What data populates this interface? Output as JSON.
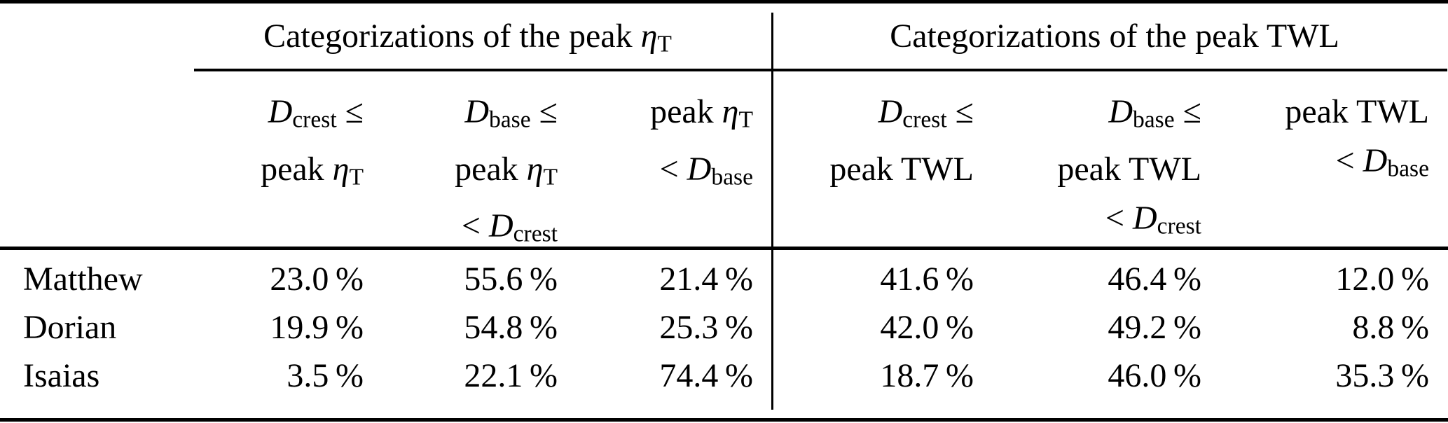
{
  "table": {
    "groups": [
      {
        "title": [
          {
            "t": "Categorizations of the peak "
          },
          {
            "v": "η"
          },
          {
            "s": "T"
          }
        ]
      },
      {
        "title": [
          {
            "t": "Categorizations of the peak TWL"
          }
        ]
      }
    ],
    "col_headers": [
      {
        "lines": [
          [
            {
              "v": "D"
            },
            {
              "s": "crest"
            },
            {
              "t": " ≤"
            }
          ],
          [
            {
              "t": "peak "
            },
            {
              "v": "η"
            },
            {
              "s": "T"
            }
          ]
        ]
      },
      {
        "lines": [
          [
            {
              "v": "D"
            },
            {
              "s": "base"
            },
            {
              "t": " ≤"
            }
          ],
          [
            {
              "t": "peak "
            },
            {
              "v": "η"
            },
            {
              "s": "T"
            }
          ],
          [
            {
              "t": "< "
            },
            {
              "v": "D"
            },
            {
              "s": "crest"
            }
          ]
        ]
      },
      {
        "lines": [
          [
            {
              "t": "peak "
            },
            {
              "v": "η"
            },
            {
              "s": "T"
            }
          ],
          [
            {
              "t": "< "
            },
            {
              "v": "D"
            },
            {
              "s": "base"
            }
          ]
        ]
      },
      {
        "lines": [
          [
            {
              "v": "D"
            },
            {
              "s": "crest"
            },
            {
              "t": " ≤"
            }
          ],
          [
            {
              "t": "peak TWL"
            }
          ]
        ]
      },
      {
        "lines": [
          [
            {
              "v": "D"
            },
            {
              "s": "base"
            },
            {
              "t": " ≤"
            }
          ],
          [
            {
              "t": "peak TWL"
            }
          ],
          [
            {
              "t": "< "
            },
            {
              "v": "D"
            },
            {
              "s": "crest"
            }
          ]
        ]
      },
      {
        "lines": [
          [
            {
              "t": "peak TWL"
            }
          ],
          [
            {
              "t": "< "
            },
            {
              "v": "D"
            },
            {
              "s": "base"
            }
          ]
        ]
      }
    ],
    "rows": [
      {
        "name": "Matthew",
        "values": [
          "23.0 %",
          "55.6 %",
          "21.4 %",
          "41.6 %",
          "46.4 %",
          "12.0 %"
        ]
      },
      {
        "name": "Dorian",
        "values": [
          "19.9 %",
          "54.8 %",
          "25.3 %",
          "42.0 %",
          "49.2 %",
          "8.8 %"
        ]
      },
      {
        "name": "Isaias",
        "values": [
          "3.5 %",
          "22.1 %",
          "74.4 %",
          "18.7 %",
          "46.0 %",
          "35.3 %"
        ]
      }
    ]
  },
  "colors": {
    "text": "#000000",
    "rule": "#000000",
    "background": "#ffffff"
  }
}
